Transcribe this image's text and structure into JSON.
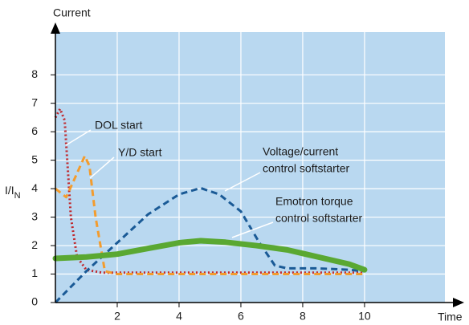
{
  "chart_data": {
    "type": "line",
    "title": "Current",
    "x_label": "Time",
    "y_label": {
      "text": "I/I",
      "subscript": "N"
    },
    "xlim": [
      0,
      12.6
    ],
    "ylim": [
      0,
      9.5
    ],
    "xticks": [
      2,
      4,
      6,
      8,
      10
    ],
    "yticks": [
      0,
      1,
      2,
      3,
      4,
      5,
      6,
      7,
      8
    ],
    "grid": true,
    "background": "#b9d8f0",
    "series": [
      {
        "name": "DOL start",
        "color": "#c0282d",
        "style": "dotted",
        "x": [
          0,
          0.15,
          0.3,
          0.5,
          0.7,
          1,
          1.5,
          2,
          10
        ],
        "values": [
          6.5,
          6.8,
          6.4,
          3,
          1.6,
          1.15,
          1.05,
          1.05,
          1.05
        ]
      },
      {
        "name": "Y/D start",
        "color": "#f39c2e",
        "style": "dashed",
        "x": [
          0,
          0.35,
          0.6,
          0.95,
          1.1,
          1.3,
          1.6,
          2,
          10
        ],
        "values": [
          4,
          3.7,
          4.3,
          5.15,
          4.8,
          3,
          1.1,
          1,
          1
        ]
      },
      {
        "name": "Voltage/current control softstarter",
        "color": "#1a5a96",
        "style": "dashed",
        "x": [
          0,
          1,
          2,
          3,
          4,
          4.7,
          5.3,
          6,
          6.6,
          7.1,
          7.5,
          8.5,
          9.5,
          10
        ],
        "values": [
          0,
          1.1,
          2.1,
          3.1,
          3.8,
          4.02,
          3.8,
          3.2,
          2.1,
          1.3,
          1.2,
          1.2,
          1.15,
          1.1
        ]
      },
      {
        "name": "Emotron torque control softstarter",
        "color": "#5aa832",
        "style": "thick",
        "x": [
          0,
          1,
          2,
          3,
          4,
          4.7,
          5.5,
          6.5,
          7.5,
          8.5,
          9.5,
          10
        ],
        "values": [
          1.55,
          1.6,
          1.7,
          1.9,
          2.1,
          2.17,
          2.12,
          2,
          1.85,
          1.6,
          1.35,
          1.15
        ]
      }
    ],
    "annotations": [
      {
        "lines": [
          "DOL start"
        ]
      },
      {
        "lines": [
          "Y/D start"
        ]
      },
      {
        "lines": [
          "Voltage/current",
          "control softstarter"
        ]
      },
      {
        "lines": [
          "Emotron torque",
          "control softstarter"
        ]
      }
    ]
  }
}
